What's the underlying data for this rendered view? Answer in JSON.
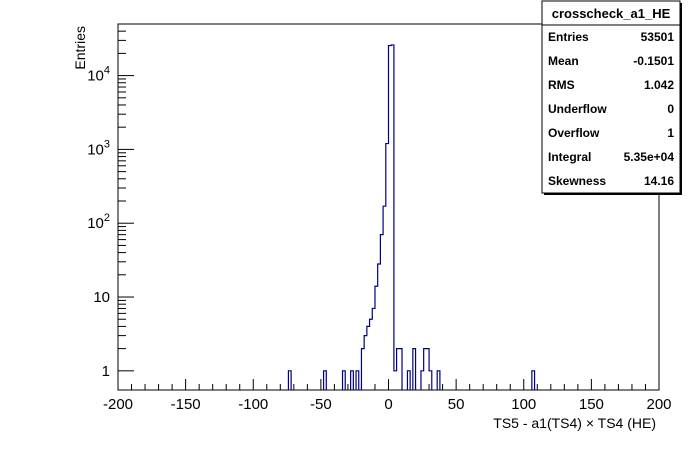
{
  "chart_data": {
    "type": "histogram",
    "title": "",
    "xlabel": "TS5 - a1(TS4)  × TS4 (HE)",
    "ylabel": "Entries",
    "xlim": [
      -200,
      200
    ],
    "ylim": [
      0.55,
      50000
    ],
    "yscale": "log",
    "bin_width": 2,
    "line_color": "#000080",
    "grid": false,
    "legend": "none",
    "x_ticks": [
      "-200",
      "-150",
      "-100",
      "-50",
      "0",
      "50",
      "100",
      "150",
      "200"
    ],
    "x_tick_values": [
      -200,
      -150,
      -100,
      -50,
      0,
      50,
      100,
      150,
      200
    ],
    "y_ticks": [
      {
        "value": 1,
        "base": "1",
        "exp": ""
      },
      {
        "value": 10,
        "base": "10",
        "exp": ""
      },
      {
        "value": 100,
        "base": "10",
        "exp": "2"
      },
      {
        "value": 1000,
        "base": "10",
        "exp": "3"
      },
      {
        "value": 10000,
        "base": "10",
        "exp": "4"
      }
    ],
    "bins": [
      {
        "x": -74,
        "y": 1
      },
      {
        "x": -48,
        "y": 1
      },
      {
        "x": -34,
        "y": 1
      },
      {
        "x": -28,
        "y": 1
      },
      {
        "x": -24,
        "y": 1
      },
      {
        "x": -20,
        "y": 2
      },
      {
        "x": -18,
        "y": 3
      },
      {
        "x": -16,
        "y": 4
      },
      {
        "x": -14,
        "y": 5
      },
      {
        "x": -12,
        "y": 7
      },
      {
        "x": -10,
        "y": 14
      },
      {
        "x": -8,
        "y": 28
      },
      {
        "x": -6,
        "y": 70
      },
      {
        "x": -4,
        "y": 170
      },
      {
        "x": -2,
        "y": 1200
      },
      {
        "x": 0,
        "y": 25500
      },
      {
        "x": 2,
        "y": 26000
      },
      {
        "x": 4,
        "y": 1
      },
      {
        "x": 6,
        "y": 2
      },
      {
        "x": 8,
        "y": 2
      },
      {
        "x": 14,
        "y": 1
      },
      {
        "x": 18,
        "y": 2
      },
      {
        "x": 24,
        "y": 1
      },
      {
        "x": 26,
        "y": 2
      },
      {
        "x": 28,
        "y": 2
      },
      {
        "x": 30,
        "y": 1
      },
      {
        "x": 36,
        "y": 1
      },
      {
        "x": 106,
        "y": 1
      }
    ],
    "stats": {
      "title": "crosscheck_a1_HE",
      "rows": [
        {
          "label": "Entries",
          "value": "53501"
        },
        {
          "label": "Mean",
          "value": "-0.1501"
        },
        {
          "label": "RMS",
          "value": "1.042"
        },
        {
          "label": "Underflow",
          "value": "0"
        },
        {
          "label": "Overflow",
          "value": "1"
        },
        {
          "label": "Integral",
          "value": "5.35e+04"
        },
        {
          "label": "Skewness",
          "value": "14.16"
        }
      ]
    }
  }
}
